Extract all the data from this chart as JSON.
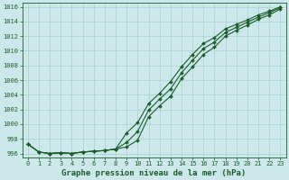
{
  "title": "Graphe pression niveau de la mer (hPa)",
  "background_color": "#cce8ea",
  "grid_color": "#a8d0d0",
  "line_color": "#1a5c2a",
  "hours": [
    0,
    1,
    2,
    3,
    4,
    5,
    6,
    7,
    8,
    9,
    10,
    11,
    12,
    13,
    14,
    15,
    16,
    17,
    18,
    19,
    20,
    21,
    22,
    23
  ],
  "line1": [
    997.3,
    996.2,
    996.0,
    996.1,
    996.0,
    996.2,
    996.3,
    996.4,
    996.6,
    998.8,
    1000.2,
    1002.8,
    1004.2,
    1005.8,
    1007.8,
    1009.5,
    1011.0,
    1011.8,
    1013.0,
    1013.6,
    1014.2,
    1014.9,
    1015.4,
    1016.0
  ],
  "line2": [
    997.3,
    996.2,
    996.0,
    996.1,
    996.0,
    996.2,
    996.3,
    996.4,
    996.6,
    996.9,
    997.8,
    1001.0,
    1002.5,
    1003.8,
    1006.2,
    1007.8,
    1009.5,
    1010.5,
    1012.0,
    1012.8,
    1013.5,
    1014.3,
    1014.9,
    1015.7
  ],
  "line3": [
    997.3,
    996.2,
    996.0,
    996.1,
    996.0,
    996.2,
    996.3,
    996.4,
    996.6,
    997.5,
    999.0,
    1001.9,
    1003.4,
    1004.8,
    1007.0,
    1008.7,
    1010.3,
    1011.2,
    1012.5,
    1013.2,
    1013.9,
    1014.6,
    1015.2,
    1015.9
  ],
  "ylim": [
    995.5,
    1016.5
  ],
  "xlim": [
    -0.5,
    23.5
  ],
  "yticks": [
    996,
    998,
    1000,
    1002,
    1004,
    1006,
    1008,
    1010,
    1012,
    1014,
    1016
  ],
  "title_fontsize": 6.5,
  "tick_fontsize": 5.0,
  "figsize": [
    3.2,
    2.0
  ],
  "dpi": 100
}
